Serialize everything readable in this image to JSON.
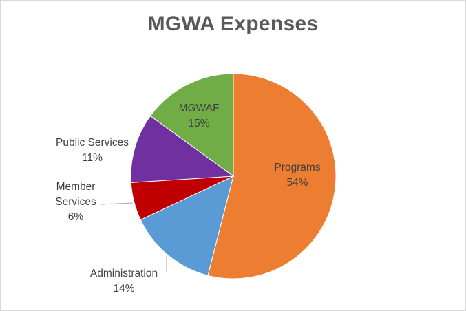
{
  "chart_data": {
    "type": "pie",
    "title": "MGWA Expenses",
    "start_angle_deg": 0,
    "direction": "clockwise",
    "slices": [
      {
        "label": "Programs",
        "value": 54,
        "display": "54%",
        "color": "#ED7D31",
        "label_position": "inside"
      },
      {
        "label": "Administration",
        "value": 14,
        "display": "14%",
        "color": "#5B9BD5",
        "label_position": "outside"
      },
      {
        "label": "Member Services",
        "label_lines": [
          "Member",
          "Services"
        ],
        "value": 6,
        "display": "6%",
        "color": "#C00000",
        "label_position": "outside"
      },
      {
        "label": "Public Services",
        "value": 11,
        "display": "11%",
        "color": "#7030A0",
        "label_position": "outside"
      },
      {
        "label": "MGWAF",
        "value": 15,
        "display": "15%",
        "color": "#70AD47",
        "label_position": "inside"
      }
    ],
    "legend": "none"
  }
}
